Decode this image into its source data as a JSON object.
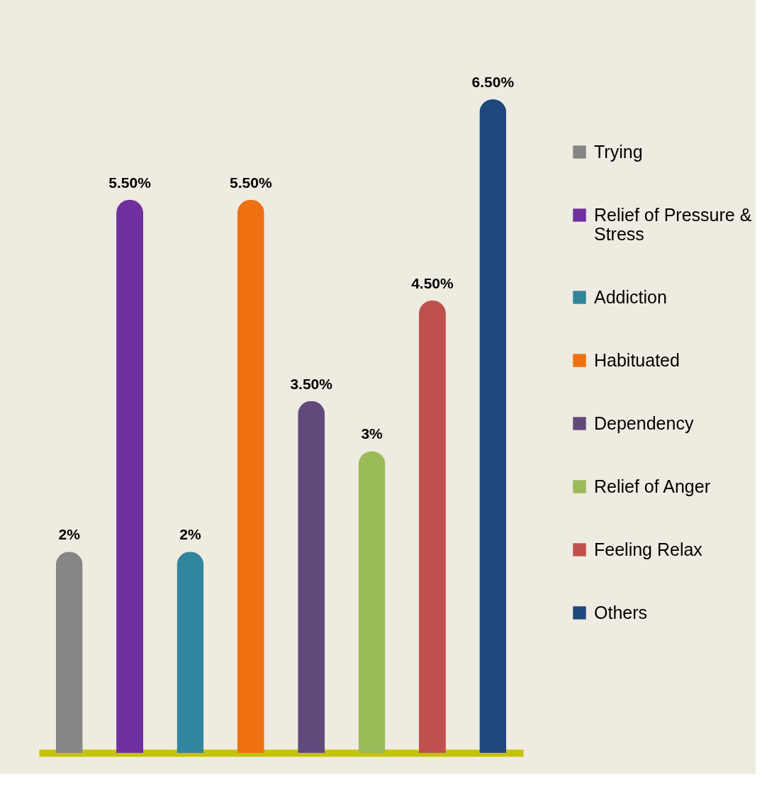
{
  "chart_data": {
    "type": "bar",
    "stacked": true,
    "categories": [
      null,
      null,
      null,
      null,
      null,
      null,
      null,
      null
    ],
    "series": [
      {
        "name": "Trying",
        "color": "#868686",
        "values": [
          2,
          null,
          null,
          null,
          null,
          null,
          null,
          null
        ],
        "value_labels": [
          "2%",
          null,
          null,
          null,
          null,
          null,
          null,
          null
        ]
      },
      {
        "name": "Relief of Pressure & Stress",
        "color": "#7030a0",
        "values": [
          null,
          5.5,
          null,
          null,
          null,
          null,
          null,
          null
        ],
        "value_labels": [
          null,
          "5.50%",
          null,
          null,
          null,
          null,
          null,
          null
        ]
      },
      {
        "name": "Addiction",
        "color": "#31859c",
        "values": [
          null,
          null,
          2,
          null,
          null,
          null,
          null,
          null
        ],
        "value_labels": [
          null,
          null,
          "2%",
          null,
          null,
          null,
          null,
          null
        ]
      },
      {
        "name": "Habituated",
        "color": "#ef7010",
        "values": [
          null,
          null,
          null,
          5.5,
          null,
          null,
          null,
          null
        ],
        "value_labels": [
          null,
          null,
          null,
          "5.50%",
          null,
          null,
          null,
          null
        ]
      },
      {
        "name": "Dependency",
        "color": "#604a7b",
        "values": [
          null,
          null,
          null,
          null,
          3.5,
          null,
          null,
          null
        ],
        "value_labels": [
          null,
          null,
          null,
          null,
          "3.50%",
          null,
          null,
          null
        ]
      },
      {
        "name": "Relief of Anger",
        "color": "#9bbb59",
        "values": [
          null,
          null,
          null,
          null,
          null,
          3,
          null,
          null
        ],
        "value_labels": [
          null,
          null,
          null,
          null,
          null,
          "3%",
          null,
          null
        ]
      },
      {
        "name": "Feeling Relax",
        "color": "#c0504d",
        "values": [
          null,
          null,
          null,
          null,
          null,
          null,
          4.5,
          null
        ],
        "value_labels": [
          null,
          null,
          null,
          null,
          null,
          null,
          "4.50%",
          null
        ]
      },
      {
        "name": "Others",
        "color": "#1f497d",
        "values": [
          null,
          null,
          null,
          null,
          null,
          null,
          null,
          6.5
        ],
        "value_labels": [
          null,
          null,
          null,
          null,
          null,
          null,
          null,
          "6.50%"
        ]
      }
    ],
    "legend": "right",
    "tick_labels": false
  }
}
